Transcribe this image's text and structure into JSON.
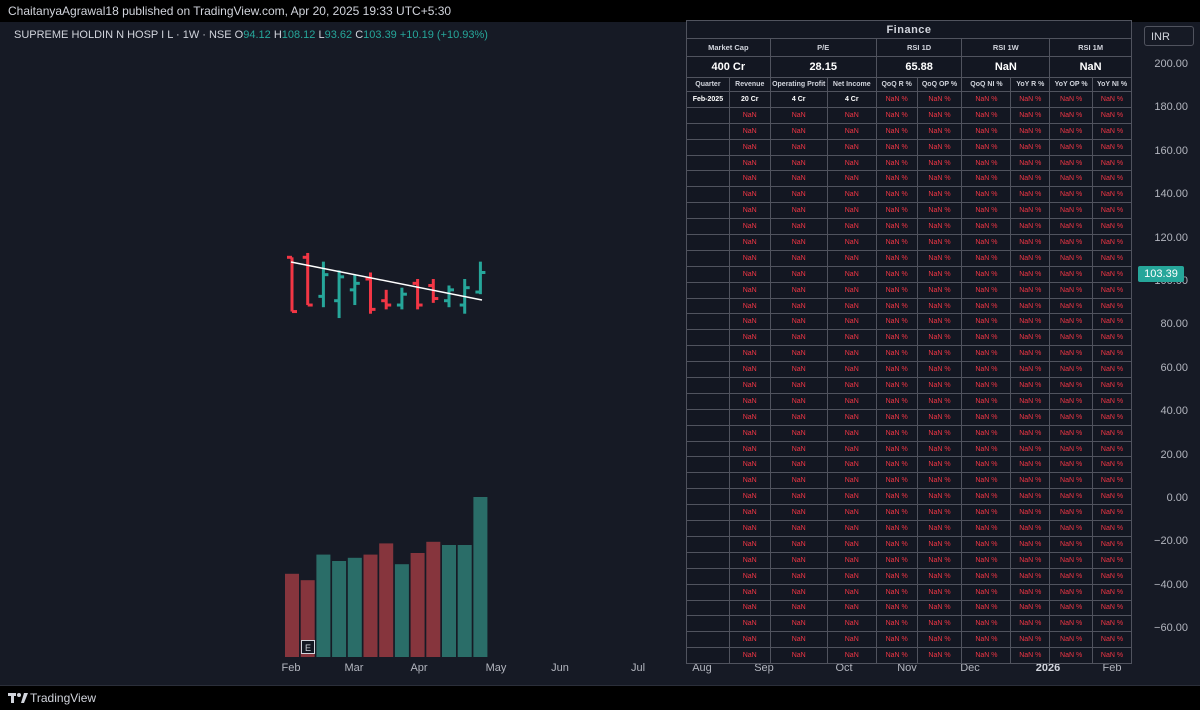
{
  "header": {
    "published": "ChaitanyaAgrawal18 published on TradingView.com, Apr 20, 2025 19:33 UTC+5:30"
  },
  "legend": {
    "symbol": "SUPREME HOLDIN N HOSP I L · 1W · NSE",
    "o_label": "O",
    "o": "94.12",
    "h_label": "H",
    "h": "108.12",
    "l_label": "L",
    "l": "93.62",
    "c_label": "C",
    "c": "103.39",
    "change": "+10.19 (+10.93%)"
  },
  "currency": "INR",
  "last_price": "103.39",
  "earnings_marker": "E",
  "y_axis": [
    "200.00",
    "180.00",
    "160.00",
    "140.00",
    "120.00",
    "100.00",
    "80.00",
    "60.00",
    "40.00",
    "20.00",
    "0.00",
    "−20.00",
    "−40.00",
    "−60.00"
  ],
  "x_axis": [
    "Feb",
    "Mar",
    "Apr",
    "May",
    "Jun",
    "Jul",
    "Aug",
    "Sep",
    "Oct",
    "Nov",
    "Dec",
    "2026",
    "Feb"
  ],
  "candles": [
    {
      "o": 110,
      "h": 110,
      "l": 85,
      "c": 85
    },
    {
      "o": 110,
      "h": 112,
      "l": 88,
      "c": 88
    },
    {
      "o": 92,
      "h": 108,
      "l": 87,
      "c": 102
    },
    {
      "o": 90,
      "h": 104,
      "l": 82,
      "c": 101
    },
    {
      "o": 95,
      "h": 102,
      "l": 88,
      "c": 98
    },
    {
      "o": 100,
      "h": 103,
      "l": 84,
      "c": 86
    },
    {
      "o": 90,
      "h": 95,
      "l": 86,
      "c": 88
    },
    {
      "o": 88,
      "h": 96,
      "l": 86,
      "c": 93
    },
    {
      "o": 98,
      "h": 100,
      "l": 86,
      "c": 88
    },
    {
      "o": 97,
      "h": 100,
      "l": 89,
      "c": 91
    },
    {
      "o": 90,
      "h": 97,
      "l": 87,
      "c": 95
    },
    {
      "o": 88,
      "h": 100,
      "l": 84,
      "c": 96
    },
    {
      "o": 94,
      "h": 108,
      "l": 93,
      "c": 103
    }
  ],
  "volumes": [
    0.52,
    0.48,
    0.64,
    0.6,
    0.62,
    0.64,
    0.71,
    0.58,
    0.65,
    0.72,
    0.7,
    0.7,
    1.0
  ],
  "finance": {
    "title": "Finance",
    "headers": [
      "Market Cap",
      "P/E",
      "RSI 1D",
      "RSI 1W",
      "RSI 1M"
    ],
    "values": [
      "400 Cr",
      "28.15",
      "65.88",
      "NaN",
      "NaN"
    ],
    "quarter_headers": [
      "Quarter",
      "Revenue",
      "Operating Profit",
      "Net Income",
      "QoQ R %",
      "QoQ OP %",
      "QoQ NI %",
      "YoY R %",
      "YoY OP %",
      "YoY NI %"
    ],
    "first_row": [
      "Feb-2025",
      "20 Cr",
      "4 Cr",
      "4 Cr",
      "NaN %",
      "NaN %",
      "NaN %",
      "NaN %",
      "NaN %",
      "NaN %"
    ],
    "nan": "NaN",
    "nan_pct": "NaN %"
  },
  "footer": {
    "brand": "TradingView"
  },
  "colors": {
    "up": "#26a69a",
    "down": "#f23645",
    "up_vol": "#26a69a80",
    "down_vol": "#f2364580"
  }
}
